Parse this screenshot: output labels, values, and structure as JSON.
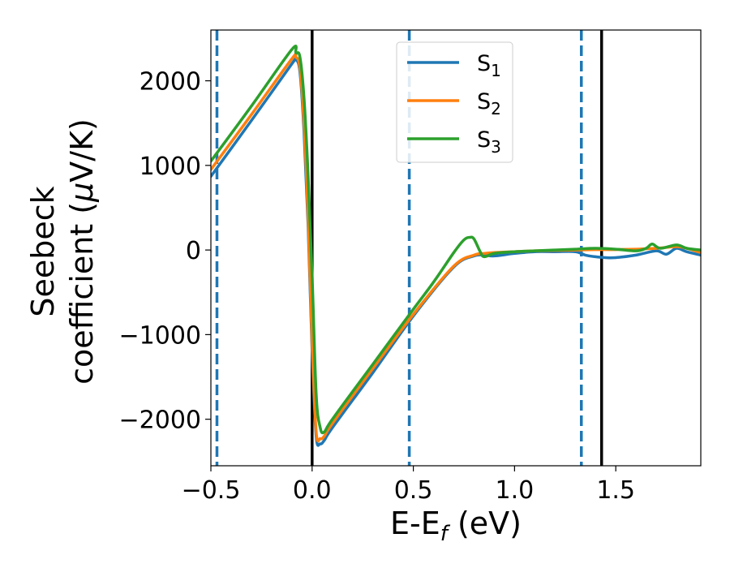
{
  "chart_data": {
    "type": "line",
    "xlabel": "E-E_f (eV)",
    "xlabel_main": "E-E",
    "xlabel_sub": "f",
    "xlabel_tail": " (eV)",
    "ylabel_line1": "Seebeck",
    "ylabel_line2_text": "coefficient  (",
    "ylabel_line2_mu": "μ",
    "ylabel_line2_unit": "V/K)",
    "xlim": [
      -0.5,
      1.92
    ],
    "ylim": [
      -2550,
      2600
    ],
    "xticks": [
      -0.5,
      0.0,
      0.5,
      1.0,
      1.5
    ],
    "xtick_labels": [
      "−0.5",
      "0.0",
      "0.5",
      "1.0",
      "1.5"
    ],
    "yticks": [
      -2000,
      -1000,
      0,
      1000,
      2000
    ],
    "ytick_labels": [
      "−2000",
      "−1000",
      "0",
      "1000",
      "2000"
    ],
    "grid": false,
    "legend_position": "top-center",
    "vlines": [
      {
        "x": -0.47,
        "style": "dashed",
        "color": "#1f77b4"
      },
      {
        "x": 0.0,
        "style": "solid",
        "color": "#000000"
      },
      {
        "x": 0.48,
        "style": "dashed",
        "color": "#1f77b4"
      },
      {
        "x": 1.33,
        "style": "dashed",
        "color": "#1f77b4"
      },
      {
        "x": 1.43,
        "style": "solid",
        "color": "#000000"
      }
    ],
    "series": [
      {
        "name": "S₁",
        "legend_main": "S",
        "legend_sub": "1",
        "color": "#1f77b4",
        "x": [
          -0.5,
          -0.3,
          -0.1,
          -0.08,
          -0.06,
          -0.04,
          -0.02,
          0.0,
          0.02,
          0.04,
          0.06,
          0.1,
          0.3,
          0.5,
          0.7,
          0.8,
          0.85,
          0.9,
          1.0,
          1.1,
          1.2,
          1.3,
          1.35,
          1.4,
          1.45,
          1.5,
          1.6,
          1.7,
          1.75,
          1.8,
          1.85,
          1.92
        ],
        "y": [
          870,
          1530,
          2200,
          2250,
          2100,
          1400,
          300,
          -1200,
          -2200,
          -2290,
          -2250,
          -2100,
          -1450,
          -780,
          -200,
          -70,
          -60,
          -70,
          -40,
          -20,
          -20,
          -20,
          -60,
          -80,
          -90,
          -90,
          -60,
          -10,
          -50,
          20,
          -20,
          -60
        ]
      },
      {
        "name": "S₂",
        "legend_main": "S",
        "legend_sub": "2",
        "color": "#ff7f0e",
        "x": [
          -0.5,
          -0.3,
          -0.1,
          -0.08,
          -0.06,
          -0.04,
          -0.02,
          0.0,
          0.02,
          0.04,
          0.06,
          0.1,
          0.3,
          0.5,
          0.7,
          0.8,
          0.85,
          0.9,
          1.0,
          1.1,
          1.2,
          1.3,
          1.4,
          1.5,
          1.6,
          1.7,
          1.8,
          1.85,
          1.92
        ],
        "y": [
          950,
          1600,
          2260,
          2280,
          2150,
          1500,
          400,
          -1100,
          -2150,
          -2230,
          -2200,
          -2050,
          -1400,
          -760,
          -190,
          -60,
          -40,
          -30,
          -20,
          -10,
          -5,
          0,
          5,
          5,
          10,
          20,
          40,
          20,
          -30
        ]
      },
      {
        "name": "S₃",
        "legend_main": "S",
        "legend_sub": "3",
        "color": "#2ca02c",
        "x": [
          -0.5,
          -0.3,
          -0.1,
          -0.08,
          -0.06,
          -0.04,
          -0.02,
          0.0,
          0.02,
          0.04,
          0.06,
          0.1,
          0.3,
          0.5,
          0.6,
          0.7,
          0.75,
          0.78,
          0.8,
          0.83,
          0.85,
          0.9,
          1.0,
          1.1,
          1.2,
          1.3,
          1.4,
          1.5,
          1.6,
          1.65,
          1.68,
          1.72,
          1.8,
          1.85,
          1.92
        ],
        "y": [
          1050,
          1700,
          2370,
          2330,
          2280,
          1800,
          900,
          -300,
          -1700,
          -2100,
          -2150,
          -2000,
          -1350,
          -700,
          -380,
          -30,
          120,
          150,
          130,
          -20,
          -80,
          -40,
          -20,
          -10,
          0,
          10,
          20,
          10,
          -10,
          20,
          70,
          20,
          60,
          20,
          0
        ]
      }
    ]
  }
}
